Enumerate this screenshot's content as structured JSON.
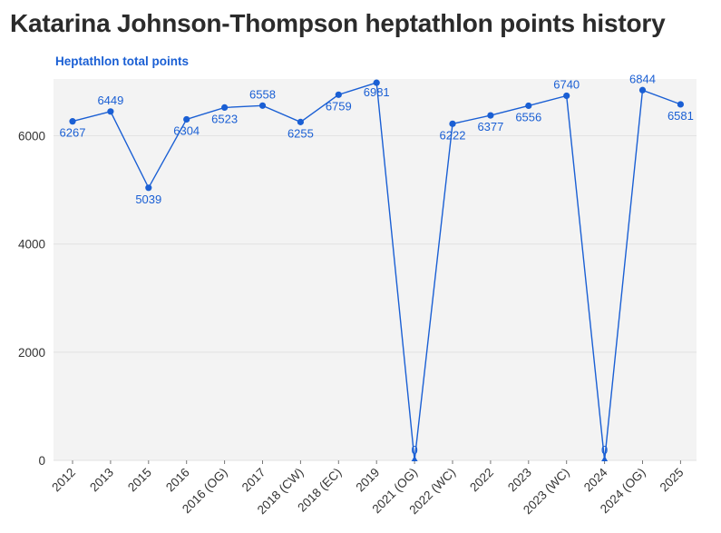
{
  "chart_data": {
    "type": "line",
    "title": "Katarina Johnson-Thompson heptathlon points history",
    "subtitle": "Heptathlon total points",
    "xlabel": "",
    "ylabel": "",
    "categories": [
      "2012",
      "2013",
      "2015",
      "2016",
      "2016 (OG)",
      "2017",
      "2018 (CW)",
      "2018 (EC)",
      "2019",
      "2021 (OG)",
      "2022 (WC)",
      "2022",
      "2023",
      "2023 (WC)",
      "2024",
      "2024 (OG)",
      "2025"
    ],
    "series": [
      {
        "values": [
          6267,
          6449,
          5039,
          6304,
          6523,
          6558,
          6255,
          6759,
          6981,
          0,
          6222,
          6377,
          6556,
          6740,
          0,
          6844,
          6581
        ]
      }
    ],
    "ylim": [
      0,
      7050
    ],
    "yticks": [
      0,
      2000,
      4000,
      6000
    ],
    "grid": true,
    "colors": {
      "line": "#1a5fd4",
      "plot_bg": "#f3f3f3",
      "grid": "#e2e2e2",
      "title": "#2b2b2b"
    }
  }
}
